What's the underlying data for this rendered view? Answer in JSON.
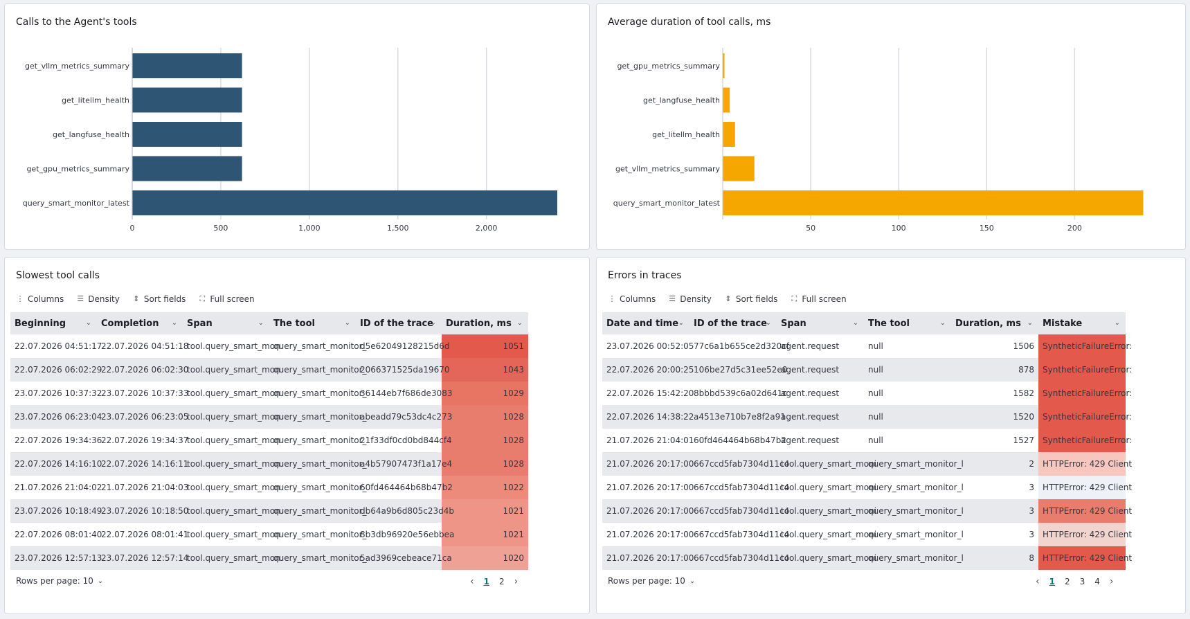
{
  "panels": {
    "calls": {
      "title": "Calls to the Agent's tools",
      "color": "#2e5573",
      "chart_data": {
        "type": "bar",
        "orientation": "horizontal",
        "categories": [
          "get_vllm_metrics_summary",
          "get_litellm_health",
          "get_langfuse_health",
          "get_gpu_metrics_summary",
          "query_smart_monitor_latest"
        ],
        "values": [
          620,
          620,
          620,
          620,
          2400
        ],
        "xlim": [
          0,
          2400
        ],
        "ticks": [
          0,
          500,
          1000,
          1500,
          2000
        ],
        "tick_labels": [
          "0",
          "500",
          "1,000",
          "1,500",
          "2,000"
        ],
        "grid": true
      }
    },
    "duration": {
      "title": "Average duration of tool calls, ms",
      "color": "#f5a700",
      "chart_data": {
        "type": "bar",
        "orientation": "horizontal",
        "categories": [
          "get_gpu_metrics_summary",
          "get_langfuse_health",
          "get_litellm_health",
          "get_vllm_metrics_summary",
          "query_smart_monitor_latest"
        ],
        "values": [
          1,
          4,
          7,
          18,
          239
        ],
        "xlim": [
          0,
          240
        ],
        "ticks": [
          50,
          100,
          150,
          200
        ],
        "tick_labels": [
          "50",
          "100",
          "150",
          "200"
        ],
        "grid": true
      }
    }
  },
  "toolbar": {
    "columns": "Columns",
    "density": "Density",
    "sort": "Sort fields",
    "fullscreen": "Full screen"
  },
  "slowest": {
    "title": "Slowest tool calls",
    "headers": [
      "Beginning",
      "Completion",
      "Span",
      "The tool",
      "ID of the trace",
      "Duration, ms"
    ],
    "rows": [
      [
        "22.07.2026 04:51:17",
        "22.07.2026 04:51:18",
        "tool.query_smart_mon",
        "query_smart_monitor_",
        "d5e62049128215d6d",
        "1051"
      ],
      [
        "22.07.2026 06:02:29",
        "22.07.2026 06:02:30",
        "tool.query_smart_mon",
        "query_smart_monitor_",
        "2066371525da19670",
        "1043"
      ],
      [
        "23.07.2026 10:37:32",
        "23.07.2026 10:37:33",
        "tool.query_smart_mon",
        "query_smart_monitor_",
        "36144eb7f686de3083",
        "1029"
      ],
      [
        "23.07.2026 06:23:04",
        "23.07.2026 06:23:05",
        "tool.query_smart_mon",
        "query_smart_monitor_",
        "abeadd79c53dc4c273",
        "1028"
      ],
      [
        "22.07.2026 19:34:36",
        "22.07.2026 19:34:37",
        "tool.query_smart_mon",
        "query_smart_monitor_",
        "21f33df0cd0bd844cf4",
        "1028"
      ],
      [
        "22.07.2026 14:16:10",
        "22.07.2026 14:16:11",
        "tool.query_smart_mon",
        "query_smart_monitor_",
        "a4b57907473f1a17e4",
        "1028"
      ],
      [
        "21.07.2026 21:04:02",
        "21.07.2026 21:04:03",
        "tool.query_smart_mon",
        "query_smart_monitor_",
        "60fd464464b68b47b2",
        "1022"
      ],
      [
        "23.07.2026 10:18:49",
        "23.07.2026 10:18:50",
        "tool.query_smart_mon",
        "query_smart_monitor_",
        "db64a9b6d805c23d4b",
        "1021"
      ],
      [
        "22.07.2026 08:01:40",
        "22.07.2026 08:01:41",
        "tool.query_smart_mon",
        "query_smart_monitor_",
        "8b3db96920e56ebbea",
        "1021"
      ],
      [
        "23.07.2026 12:57:13",
        "23.07.2026 12:57:14",
        "tool.query_smart_mon",
        "query_smart_monitor_",
        "5ad3969cebeace71ca",
        "1020"
      ]
    ],
    "duration_colors": [
      "#e3594b",
      "#e4665a",
      "#e87564",
      "#e97d6d",
      "#e97d6d",
      "#e97d6d",
      "#ec8a7b",
      "#ee9587",
      "#ee9587",
      "#f0a196"
    ],
    "rows_per_page": "Rows per page: 10",
    "pages": [
      "1",
      "2"
    ]
  },
  "errors": {
    "title": "Errors in traces",
    "headers": [
      "Date and time",
      "ID of the trace",
      "Span",
      "The tool",
      "Duration, ms",
      "Mistake"
    ],
    "rows": [
      [
        "23.07.2026 00:52:05",
        "77c6a1b655ce2d320cf",
        "agent.request",
        "null",
        "1506",
        "SyntheticFailureError:"
      ],
      [
        "22.07.2026 20:00:25",
        "106be27d5c31ee52e0",
        "agent.request",
        "null",
        "878",
        "SyntheticFailureError:"
      ],
      [
        "22.07.2026 15:42:20",
        "8bbbd539c6a02d641c",
        "agent.request",
        "null",
        "1582",
        "SyntheticFailureError:"
      ],
      [
        "22.07.2026 14:38:22",
        "a4513e710b7e8f2a91",
        "agent.request",
        "null",
        "1520",
        "SyntheticFailureError:"
      ],
      [
        "21.07.2026 21:04:01",
        "60fd464464b68b47b2",
        "agent.request",
        "null",
        "1527",
        "SyntheticFailureError:"
      ],
      [
        "21.07.2026 20:17:00",
        "667ccd5fab7304d11c4",
        "tool.query_smart_moni",
        "query_smart_monitor_l",
        "2",
        "HTTPError: 429 Client"
      ],
      [
        "21.07.2026 20:17:00",
        "667ccd5fab7304d11c4",
        "tool.query_smart_moni",
        "query_smart_monitor_l",
        "3",
        "HTTPError: 429 Client"
      ],
      [
        "21.07.2026 20:17:00",
        "667ccd5fab7304d11c4",
        "tool.query_smart_moni",
        "query_smart_monitor_l",
        "3",
        "HTTPError: 429 Client"
      ],
      [
        "21.07.2026 20:17:00",
        "667ccd5fab7304d11c4",
        "tool.query_smart_moni",
        "query_smart_monitor_l",
        "3",
        "HTTPError: 429 Client"
      ],
      [
        "21.07.2026 20:17:00",
        "667ccd5fab7304d11c4",
        "tool.query_smart_moni",
        "query_smart_monitor_l",
        "8",
        "HTTPError: 429 Client"
      ]
    ],
    "mistake_colors": [
      "#e3594b",
      "#e3594b",
      "#e3594b",
      "#e3594b",
      "#e3594b",
      "#f7c7bf",
      "#eef1f6",
      "#e97d6d",
      "#f2d4cf",
      "#e3594b"
    ],
    "rows_per_page": "Rows per page: 10",
    "pages": [
      "1",
      "2",
      "3",
      "4"
    ]
  }
}
